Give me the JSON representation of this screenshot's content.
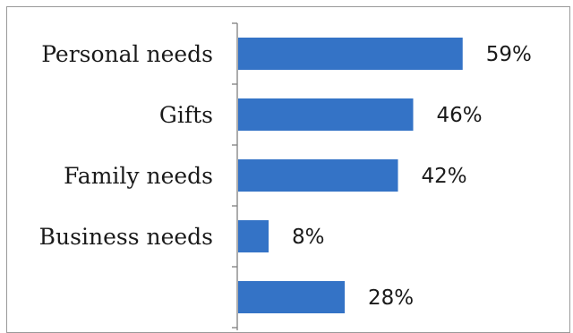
{
  "chart_data": {
    "type": "bar",
    "orientation": "horizontal",
    "categories": [
      "Personal needs",
      "Gifts",
      "Family needs",
      "Business needs",
      ""
    ],
    "values": [
      59,
      46,
      42,
      8,
      28
    ],
    "value_labels": [
      "59%",
      "46%",
      "42%",
      "8%",
      "28%"
    ],
    "unit": "%",
    "xlim": [
      0,
      100
    ],
    "grid": false,
    "legend": "none",
    "bar_color": "#3473C6",
    "axis_color": "#808080"
  }
}
